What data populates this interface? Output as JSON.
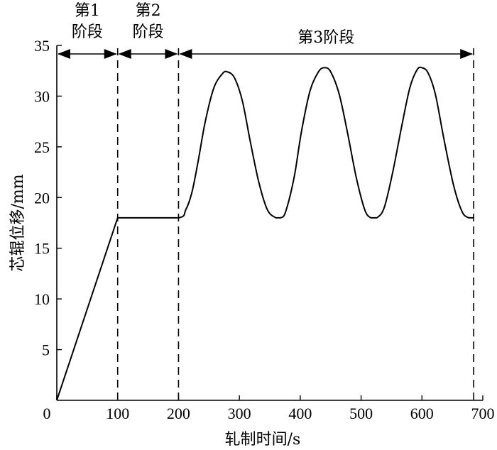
{
  "chart_data": {
    "type": "line",
    "xlabel": "轧制时间/s",
    "ylabel": "芯辊位移/mm",
    "xlim": [
      0,
      700
    ],
    "ylim": [
      0,
      35
    ],
    "xticks": [
      0,
      100,
      200,
      300,
      400,
      500,
      600,
      700
    ],
    "yticks": [
      5,
      10,
      15,
      20,
      25,
      30,
      35
    ],
    "grid": false,
    "stages": [
      {
        "label_line1": "第1",
        "label_line2": "阶段",
        "x_start": 0,
        "x_end": 100
      },
      {
        "label_line1": "第2",
        "label_line2": "阶段",
        "x_start": 100,
        "x_end": 200
      },
      {
        "label_line1": "第3阶段",
        "label_line2": "",
        "x_start": 200,
        "x_end": 685
      }
    ],
    "series": [
      {
        "x": [
          0,
          100,
          135,
          200,
          212,
          222,
          232,
          244,
          258,
          272,
          280,
          292,
          305,
          318,
          332,
          346,
          360,
          368,
          376,
          390,
          402,
          416,
          430,
          440,
          450,
          464,
          478,
          492,
          506,
          516,
          526,
          538,
          552,
          566,
          580,
          592,
          600,
          610,
          622,
          636,
          652,
          666,
          677,
          685
        ],
        "y": [
          0,
          18,
          18,
          18,
          18.8,
          20.5,
          23.5,
          27.5,
          30.8,
          32.2,
          32.4,
          31.8,
          29.5,
          25.5,
          21.5,
          18.8,
          18,
          18,
          18.6,
          22,
          26.5,
          30.5,
          32.4,
          32.8,
          32.4,
          30.2,
          26.3,
          22,
          18.8,
          18,
          18,
          19,
          22.5,
          26.8,
          30.8,
          32.6,
          32.8,
          32.3,
          30.2,
          25.8,
          21.2,
          18.6,
          18,
          18
        ]
      }
    ]
  }
}
